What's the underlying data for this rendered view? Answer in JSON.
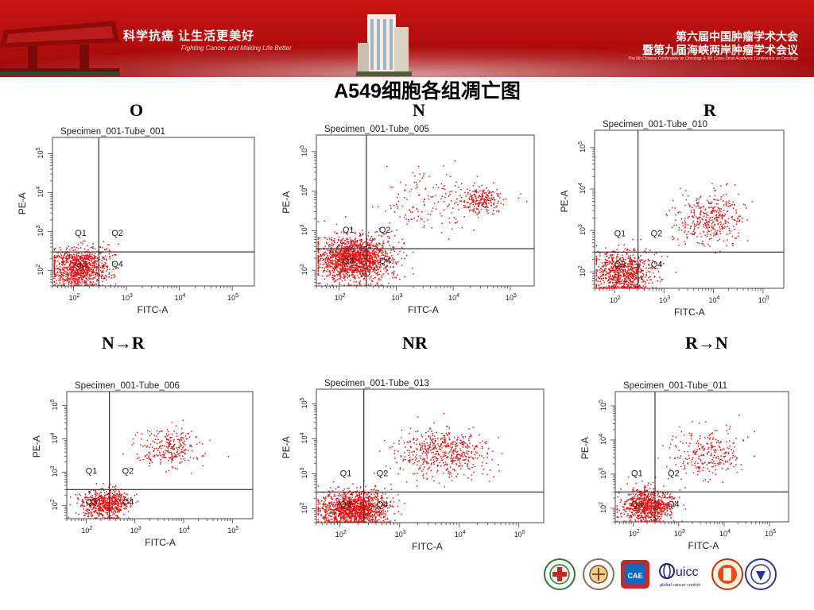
{
  "header": {
    "slogan_cn": "科学抗癌 让生活更美好",
    "slogan_en": "Fighting Cancer and Making Life Better",
    "conference_line1": "第六届中国肿瘤学术大会",
    "conference_line2": "暨第九届海峡两岸肿瘤学术会议",
    "conference_en": "The 6th Chinese Conference on Oncology & 9th Cross-Strait Academic Conference on Oncology"
  },
  "slide": {
    "title": "A549细胞各组凋亡图"
  },
  "panels": [
    {
      "group": "O",
      "specimen": "Specimen_001-Tube_001",
      "gate_x": 300,
      "gate_y": 300,
      "quadrants": {
        "q1": "Q1",
        "q2": "Q2",
        "q3": "Q3",
        "q4": "Q4"
      },
      "x_label": "FITC-A",
      "y_label": "PE-A",
      "x_ticks": [
        "10^2",
        "10^3",
        "10^4",
        "10^5"
      ],
      "y_ticks": [
        "10^2",
        "10^3",
        "10^4",
        "10^5"
      ],
      "clusters": [
        {
          "x": 120,
          "y": 120,
          "spread": 0.28,
          "count": 900
        },
        {
          "x": 250,
          "y": 180,
          "spread": 0.2,
          "count": 60
        }
      ]
    },
    {
      "group": "N",
      "specimen": "Specimen_001-Tube_005",
      "gate_x": 300,
      "gate_y": 350,
      "quadrants": {
        "q1": "Q1",
        "q2": "Q2",
        "q3": "Q3",
        "q4": "Q4"
      },
      "x_label": "FITC-A",
      "y_label": "PE-A",
      "x_ticks": [
        "10^2",
        "10^3",
        "10^4",
        "10^5"
      ],
      "y_ticks": [
        "10^2",
        "10^3",
        "10^4",
        "10^5"
      ],
      "clusters": [
        {
          "x": 180,
          "y": 200,
          "spread": 0.32,
          "count": 1600
        },
        {
          "x": 30000,
          "y": 6000,
          "spread": 0.18,
          "count": 220
        },
        {
          "x": 4000,
          "y": 5000,
          "spread": 0.45,
          "count": 160
        }
      ]
    },
    {
      "group": "R",
      "specimen": "Specimen_001-Tube_010",
      "gate_x": 300,
      "gate_y": 300,
      "quadrants": {
        "q1": "Q1",
        "q2": "Q2",
        "q3": "Q3",
        "q4": "Q4"
      },
      "x_label": "FITC-A",
      "y_label": "PE-A",
      "x_ticks": [
        "10^2",
        "10^3",
        "10^4",
        "10^5"
      ],
      "y_ticks": [
        "10^2",
        "10^3",
        "10^4",
        "10^5"
      ],
      "clusters": [
        {
          "x": 150,
          "y": 100,
          "spread": 0.3,
          "count": 800
        },
        {
          "x": 8000,
          "y": 2000,
          "spread": 0.35,
          "count": 380
        }
      ]
    },
    {
      "group": "N→R",
      "specimen": "Specimen_001-Tube_006",
      "gate_x": 300,
      "gate_y": 300,
      "quadrants": {
        "q1": "Q1",
        "q2": "Q2",
        "q3": "Q3",
        "q4": "Q4"
      },
      "x_label": "FITC-A",
      "y_label": "PE-A",
      "x_ticks": [
        "10^2",
        "10^3",
        "10^4",
        "10^5"
      ],
      "y_ticks": [
        "10^2",
        "10^3",
        "10^4",
        "10^5"
      ],
      "clusters": [
        {
          "x": 250,
          "y": 120,
          "spread": 0.25,
          "count": 600
        },
        {
          "x": 5000,
          "y": 5000,
          "spread": 0.35,
          "count": 260
        }
      ]
    },
    {
      "group": "NR",
      "specimen": "Specimen_001-Tube_013",
      "gate_x": 250,
      "gate_y": 300,
      "quadrants": {
        "q1": "Q1",
        "q2": "Q2",
        "q3": "Q3",
        "q4": "Q4"
      },
      "x_label": "FITC-A",
      "y_label": "PE-A",
      "x_ticks": [
        "10^2",
        "10^3",
        "10^4",
        "10^5"
      ],
      "y_ticks": [
        "10^2",
        "10^3",
        "10^4",
        "10^5"
      ],
      "clusters": [
        {
          "x": 170,
          "y": 100,
          "spread": 0.28,
          "count": 1300
        },
        {
          "x": 5000,
          "y": 4000,
          "spread": 0.4,
          "count": 520
        }
      ]
    },
    {
      "group": "R→N",
      "specimen": "Specimen_001-Tube_011",
      "gate_x": 300,
      "gate_y": 300,
      "quadrants": {
        "q1": "Q1",
        "q2": "Q2",
        "q3": "Q3",
        "q4": "Q4"
      },
      "x_label": "FITC-A",
      "y_label": "PE-A",
      "x_ticks": [
        "10^2",
        "10^3",
        "10^4",
        "10^5"
      ],
      "y_ticks": [
        "10^2",
        "10^3",
        "10^4",
        "10^5"
      ],
      "clusters": [
        {
          "x": 200,
          "y": 120,
          "spread": 0.28,
          "count": 800
        },
        {
          "x": 5000,
          "y": 4000,
          "spread": 0.4,
          "count": 260
        }
      ]
    }
  ],
  "logos": [
    "cancer-hospital-logo",
    "anticancer-association-logo",
    "cae-logo",
    "uicc-logo",
    "university-seal-logo",
    "institute-seal-logo"
  ],
  "logo_text": {
    "uicc": "uicc",
    "uicc_sub": "global cancer control",
    "cae": "CAE"
  },
  "colors": {
    "banner": "#c81414",
    "dots": "#e01010",
    "gate": "#333333"
  }
}
